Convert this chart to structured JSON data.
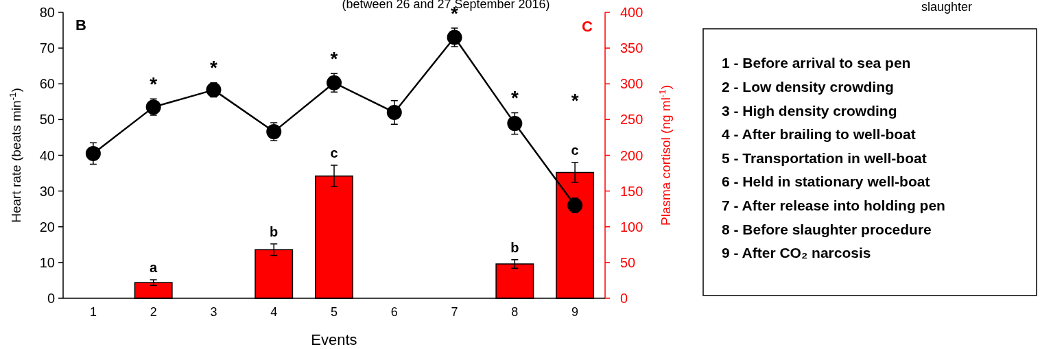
{
  "chart_data": [
    {
      "type": "line",
      "xlabel": "Events",
      "ylabel": "Heart rate (beats min$^{-1}$)",
      "y2label": "Plasma cortisol (ng ml$^{-1}$)",
      "categories": [
        "1",
        "2",
        "3",
        "4",
        "5",
        "6",
        "7",
        "8",
        "9"
      ],
      "ylim": [
        0,
        80
      ],
      "yticks": [
        0,
        10,
        20,
        30,
        40,
        50,
        60,
        70,
        80
      ],
      "y2lim": [
        0,
        400
      ],
      "y2ticks": [
        0,
        50,
        100,
        150,
        200,
        250,
        300,
        350,
        400
      ],
      "grid": false,
      "series": [
        {
          "type": "bar",
          "axis": "y2",
          "color": "#ff0000",
          "values": [
            null,
            22,
            null,
            68,
            171,
            null,
            null,
            48,
            176
          ],
          "errors": [
            null,
            4,
            null,
            8,
            15,
            null,
            null,
            6,
            14
          ]
        },
        {
          "type": "line",
          "color": "#000000",
          "marker": "circle",
          "line_style": "solid",
          "values": [
            40.5,
            53.5,
            58.3,
            46.6,
            60.3,
            52,
            73,
            48.9,
            26
          ],
          "errors": [
            3,
            2.3,
            2,
            2.5,
            2.6,
            3.3,
            2.6,
            3,
            2
          ]
        }
      ],
      "annotations": [
        "(between 26 and 27 September 2016)",
        "B",
        "C",
        "*",
        "*",
        "*",
        "*",
        "*",
        "*",
        "a",
        "b",
        "c",
        "b",
        "c"
      ]
    },
    {
      "type": "other",
      "annotations": [
        "slaughter",
        "1 -  Before arrival to sea pen",
        "2 -  Low density crowding",
        "3 -  High density crowding",
        "4 -  After brailing to well-boat",
        "5 -  Transportation in well-boat",
        "6 -  Held in stationary well-boat",
        "7 -  After release into holding pen",
        "8 -  Before slaughter procedure",
        "9 -  After CO₂ narcosis"
      ]
    }
  ]
}
